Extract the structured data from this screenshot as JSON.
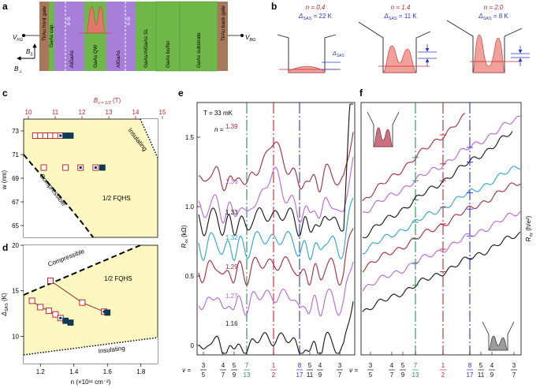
{
  "panel_labels": [
    "a",
    "b",
    "c",
    "d",
    "e",
    "f"
  ],
  "panel_a": {
    "layers": [
      "Ti/Au front gate",
      "GaAs cap",
      "AlGaAs",
      "GaAs QW",
      "AlGaAs",
      "GaAs/AlGaAs SL",
      "GaAs buffer",
      "GaAs substrate",
      "Ti/Au back gate"
    ],
    "delta_si": [
      "δ-Si",
      "δ-Si"
    ],
    "v_fg": "V",
    "v_fg_sub": "FG",
    "v_bg": "V",
    "v_bg_sub": "BG",
    "b_par": "B",
    "b_par_sub": "||",
    "b_perp": "B",
    "b_perp_sub": "⊥",
    "colors": {
      "gate": "#a7785a",
      "gaas": "#70b74a",
      "algaas": "#a77fd8",
      "wavefunction": "#e0776a"
    }
  },
  "panel_b": {
    "items": [
      {
        "n_label": "n = 0.4",
        "delta_label": "Δ",
        "delta_sub": "SAS",
        "delta_value": " = 22 K"
      },
      {
        "n_label": "n = 1.4",
        "delta_label": "Δ",
        "delta_sub": "SAS",
        "delta_value": " = 11 K"
      },
      {
        "n_label": "n = 2.0",
        "delta_label": "Δ",
        "delta_sub": "SAS",
        "delta_value": " = 8 K"
      }
    ],
    "gap_label": "Δ",
    "gap_sub": "SAS"
  },
  "chart_data": [
    {
      "type": "scatter",
      "panel": "c",
      "title": "",
      "top_axis_label": "B",
      "top_axis_sub": "ν = 1/2",
      "top_axis_unit": " (T)",
      "top_ticks": [
        "10",
        "11",
        "12",
        "13",
        "14",
        "15"
      ],
      "ylabel": "w (nm)",
      "ylim": [
        64,
        74
      ],
      "yticks": [
        "65",
        "67",
        "69",
        "71",
        "73"
      ],
      "regions": [
        "Compressible",
        "1/2 FQHS",
        "Insulating"
      ],
      "points": [
        {
          "x": 1.17,
          "y": 72.6,
          "style": "open"
        },
        {
          "x": 1.2,
          "y": 72.6,
          "style": "open"
        },
        {
          "x": 1.23,
          "y": 72.6,
          "style": "open"
        },
        {
          "x": 1.26,
          "y": 72.6,
          "style": "open"
        },
        {
          "x": 1.29,
          "y": 72.6,
          "style": "open"
        },
        {
          "x": 1.32,
          "y": 72.6,
          "style": "dot"
        },
        {
          "x": 1.35,
          "y": 72.6,
          "style": "filled"
        },
        {
          "x": 1.38,
          "y": 72.6,
          "style": "filled"
        },
        {
          "x": 1.22,
          "y": 69.9,
          "style": "open"
        },
        {
          "x": 1.35,
          "y": 69.9,
          "style": "open"
        },
        {
          "x": 1.44,
          "y": 69.9,
          "style": "dot"
        },
        {
          "x": 1.53,
          "y": 69.9,
          "style": "dot"
        },
        {
          "x": 1.57,
          "y": 69.9,
          "style": "filled"
        }
      ]
    },
    {
      "type": "scatter",
      "panel": "d",
      "xlabel": "n (×10¹¹ cm⁻²)",
      "xlim": [
        1.1,
        1.9
      ],
      "xticks": [
        "1.2",
        "1.4",
        "1.6",
        "1.8"
      ],
      "ylabel": "Δ",
      "ylabel_sub": "SAS",
      "ylabel_unit": " (K)",
      "ylim": [
        7,
        20
      ],
      "yticks": [
        "10",
        "15",
        "20"
      ],
      "regions": [
        "Compressible",
        "1/2 FQHS",
        "Insulating"
      ],
      "points": [
        {
          "x": 1.15,
          "y": 13.9,
          "style": "open"
        },
        {
          "x": 1.2,
          "y": 13.2,
          "style": "open"
        },
        {
          "x": 1.25,
          "y": 12.8,
          "style": "open"
        },
        {
          "x": 1.29,
          "y": 12.4,
          "style": "open"
        },
        {
          "x": 1.32,
          "y": 12.0,
          "style": "dot"
        },
        {
          "x": 1.35,
          "y": 11.7,
          "style": "filled"
        },
        {
          "x": 1.38,
          "y": 11.5,
          "style": "filled"
        },
        {
          "x": 1.26,
          "y": 16.1,
          "style": "open"
        },
        {
          "x": 1.45,
          "y": 13.7,
          "style": "open"
        },
        {
          "x": 1.58,
          "y": 12.7,
          "style": "dot"
        },
        {
          "x": 1.6,
          "y": 12.6,
          "style": "filled"
        }
      ]
    },
    {
      "type": "line",
      "panel": "e",
      "title": "T = 33 mK",
      "ylabel": "R",
      "ylabel_sub": "xx",
      "ylabel_unit": " (kΩ)",
      "yticks": [
        "0",
        "0.5",
        "1.0",
        "1.5"
      ],
      "ylim": [
        -0.1,
        1.9
      ],
      "n_prefix": "n =",
      "series": [
        {
          "n": "1.39",
          "color": "#a42a3b"
        },
        {
          "n": "1.36",
          "color": "#b964de"
        },
        {
          "n": "1.33",
          "color": "#111111"
        },
        {
          "n": "1.32",
          "color": "#2aa4d4"
        },
        {
          "n": "1.29",
          "color": "#a42a3b"
        },
        {
          "n": "1.27",
          "color": "#b964de"
        },
        {
          "n": "1.16",
          "color": "#111111"
        }
      ]
    },
    {
      "type": "line",
      "panel": "f",
      "ylabel": "R",
      "ylabel_sub": "xy",
      "ylabel_unit": " (h/e²)",
      "series_colors": [
        "#a42a3b",
        "#b964de",
        "#111111",
        "#2aa4d4",
        "#a42a3b",
        "#b964de",
        "#111111"
      ]
    }
  ],
  "filling_axis": {
    "nu_label": "ν =",
    "fractions": [
      {
        "num": "3",
        "den": "5",
        "color": "#111111"
      },
      {
        "num": "4",
        "den": "7",
        "color": "#111111"
      },
      {
        "num": "5",
        "den": "9",
        "color": "#111111"
      },
      {
        "num": "7",
        "den": "13",
        "color": "#2a8a5a"
      },
      {
        "num": "1",
        "den": "2",
        "color": "#c0282d"
      },
      {
        "num": "8",
        "den": "17",
        "color": "#2b39c7"
      },
      {
        "num": "5",
        "den": "11",
        "color": "#111111"
      },
      {
        "num": "4",
        "den": "9",
        "color": "#111111"
      },
      {
        "num": "3",
        "den": "7",
        "color": "#111111"
      }
    ],
    "marker_colors": {
      "7/13": "#2a8a5a",
      "1/2": "#c0282d",
      "8/17": "#2b39c7"
    }
  }
}
